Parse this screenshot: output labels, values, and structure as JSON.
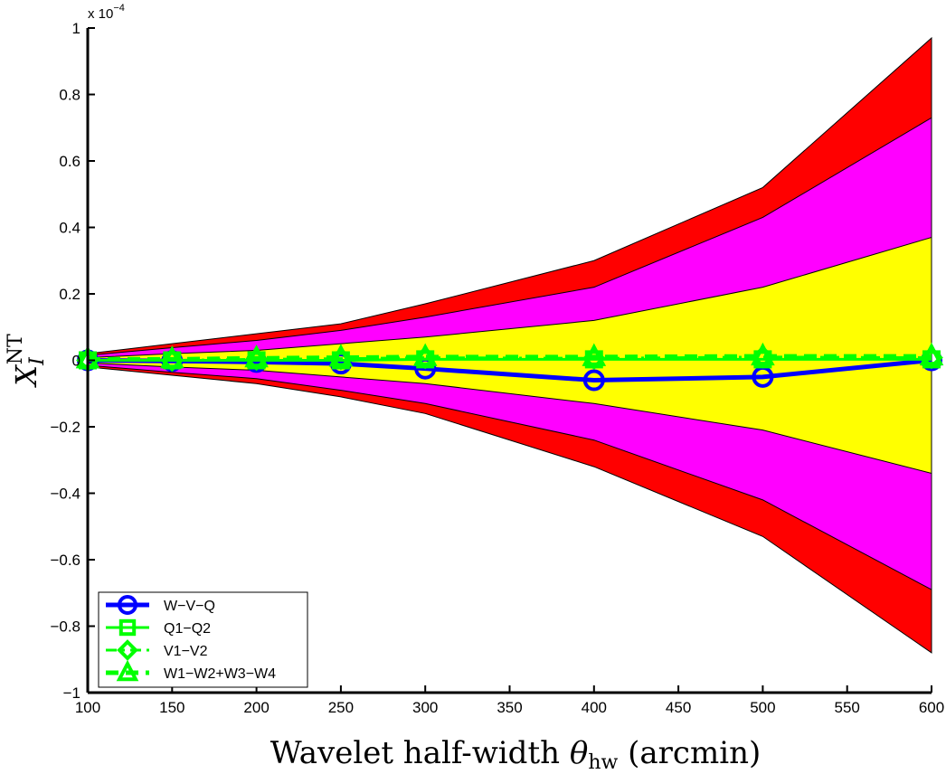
{
  "chart_data": {
    "type": "line",
    "xlabel_main": "Wavelet half-width ",
    "xlabel_symbol": "θ",
    "xlabel_sub": "hw",
    "xlabel_tail": " (arcmin)",
    "ylabel_main": "X",
    "ylabel_sub": "I",
    "ylabel_sup": "NT",
    "y_multiplier_base": "x 10",
    "y_multiplier_exp": "−4",
    "xlim": [
      100,
      600
    ],
    "ylim": [
      -1,
      1
    ],
    "xticks": [
      100,
      150,
      200,
      250,
      300,
      350,
      400,
      450,
      500,
      550,
      600
    ],
    "xtick_labels": [
      "100",
      "150",
      "200",
      "250",
      "300",
      "350",
      "400",
      "450",
      "500",
      "550",
      "600"
    ],
    "yticks": [
      -1,
      -0.8,
      -0.6,
      -0.4,
      -0.2,
      0,
      0.2,
      0.4,
      0.6,
      0.8,
      1
    ],
    "ytick_labels": [
      "−1",
      "−0.8",
      "−0.6",
      "−0.4",
      "−0.2",
      "0",
      "0.2",
      "0.4",
      "0.6",
      "0.8",
      "1"
    ],
    "x": [
      100,
      150,
      200,
      250,
      300,
      400,
      500,
      600
    ],
    "bands": [
      {
        "level": "outer",
        "color": "#ff0000",
        "upper": [
          0.02,
          0.05,
          0.08,
          0.11,
          0.17,
          0.3,
          0.52,
          0.97
        ],
        "lower": [
          -0.02,
          -0.045,
          -0.07,
          -0.11,
          -0.16,
          -0.32,
          -0.53,
          -0.88
        ]
      },
      {
        "level": "middle",
        "color": "#ff00ff",
        "upper": [
          0.015,
          0.038,
          0.06,
          0.09,
          0.13,
          0.22,
          0.43,
          0.73
        ],
        "lower": [
          -0.015,
          -0.036,
          -0.055,
          -0.09,
          -0.13,
          -0.24,
          -0.42,
          -0.69
        ]
      },
      {
        "level": "inner",
        "color": "#ffff00",
        "upper": [
          0.008,
          0.02,
          0.03,
          0.05,
          0.07,
          0.12,
          0.22,
          0.37
        ],
        "lower": [
          -0.008,
          -0.02,
          -0.03,
          -0.05,
          -0.07,
          -0.13,
          -0.21,
          -0.34
        ]
      }
    ],
    "series": [
      {
        "name": "W−V−Q",
        "color": "#0000ff",
        "marker": "circle",
        "dash": "solid",
        "width": 5,
        "values": [
          0,
          -0.002,
          -0.005,
          -0.01,
          -0.025,
          -0.06,
          -0.05,
          0
        ]
      },
      {
        "name": "Q1−Q2",
        "color": "#00ff00",
        "marker": "square",
        "dash": "solid",
        "width": 3,
        "values": [
          0,
          0,
          0,
          0,
          0.003,
          0.003,
          0.003,
          0.003
        ]
      },
      {
        "name": "V1−V2",
        "color": "#00ff00",
        "marker": "diamond",
        "dash": "dashdot",
        "width": 3,
        "values": [
          0,
          0,
          0.003,
          0.005,
          0.008,
          0.006,
          0.01,
          0.008
        ]
      },
      {
        "name": "W1−W2+W3−W4",
        "color": "#00ff00",
        "marker": "triangle",
        "dash": "dashed",
        "width": 5,
        "values": [
          0.003,
          0.003,
          0.006,
          0.008,
          0.01,
          0.01,
          0.012,
          0.012
        ]
      }
    ],
    "legend_position": "bottom-left",
    "grid": false
  }
}
